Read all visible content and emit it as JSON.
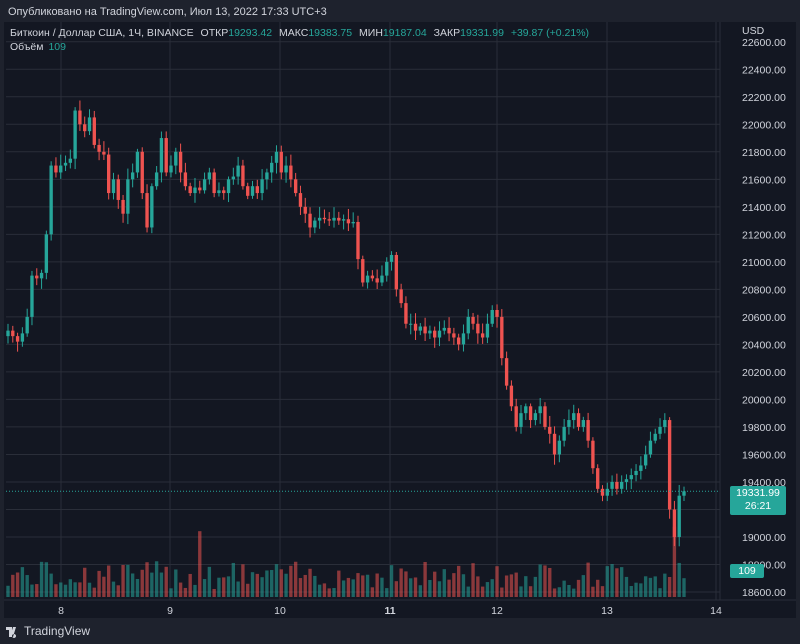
{
  "header": {
    "published": "Опубликовано на TradingView.com, Июл 13, 2022 17:33 UTC+3"
  },
  "legend": {
    "symbol": "Биткоин / Доллар США, 1Ч, BINANCE",
    "open_label": "ОТКР",
    "open": "19293.42",
    "high_label": "МАКС",
    "high": "19383.75",
    "low_label": "МИН",
    "low": "19187.04",
    "close_label": "ЗАКР",
    "close": "19331.99",
    "change": "+39.87 (+0.21%)",
    "volume_label": "Объём",
    "volume": "109"
  },
  "price_tag": {
    "price": "19331.99",
    "countdown": "26:21"
  },
  "volume_tag": "109",
  "footer": {
    "brand": "TradingView"
  },
  "colors": {
    "up": "#26a69a",
    "down": "#ef5350",
    "background": "#131722",
    "grid": "#2a2e39"
  },
  "chart_data": {
    "type": "candlestick",
    "currency_label": "USD",
    "ylim": [
      18600,
      22700
    ],
    "y_ticks": [
      "22600.00",
      "22400.00",
      "22200.00",
      "22000.00",
      "21800.00",
      "21600.00",
      "21400.00",
      "21200.00",
      "21000.00",
      "20800.00",
      "20600.00",
      "20400.00",
      "20200.00",
      "20000.00",
      "19800.00",
      "19600.00",
      "19400.00",
      "19200.00",
      "19000.00",
      "18800.00",
      "18600.00"
    ],
    "x_ticks": [
      "8",
      "9",
      "10",
      "11",
      "12",
      "13",
      "14"
    ],
    "bold_x_tick": "11",
    "close_series": [
      20500,
      20460,
      20420,
      20480,
      20600,
      20900,
      20880,
      20920,
      21200,
      21700,
      21650,
      21700,
      21720,
      21750,
      22100,
      22000,
      21950,
      22050,
      21850,
      21800,
      21780,
      21500,
      21600,
      21450,
      21350,
      21600,
      21650,
      21800,
      21500,
      21250,
      21550,
      21650,
      21900,
      21650,
      21700,
      21800,
      21650,
      21550,
      21500,
      21540,
      21520,
      21600,
      21650,
      21500,
      21520,
      21500,
      21600,
      21620,
      21700,
      21550,
      21480,
      21550,
      21500,
      21600,
      21650,
      21720,
      21800,
      21650,
      21700,
      21600,
      21500,
      21400,
      21350,
      21250,
      21300,
      21320,
      21310,
      21300,
      21320,
      21300,
      21310,
      21280,
      21290,
      21020,
      20850,
      20900,
      20880,
      20850,
      20900,
      21000,
      21050,
      20800,
      20700,
      20550,
      20550,
      20500,
      20530,
      20480,
      20500,
      20450,
      20500,
      20520,
      20480,
      20450,
      20400,
      20480,
      20600,
      20550,
      20480,
      20450,
      20550,
      20650,
      20600,
      20300,
      20100,
      19950,
      19800,
      19900,
      19950,
      19850,
      19900,
      19950,
      19800,
      19750,
      19600,
      19700,
      19800,
      19850,
      19900,
      19800,
      19850,
      19700,
      19500,
      19350,
      19300,
      19350,
      19400,
      19350,
      19400,
      19420,
      19450,
      19480,
      19520,
      19600,
      19700,
      19750,
      19800,
      19850,
      19200,
      19000,
      19300,
      19332
    ],
    "volume_latest": 109
  }
}
